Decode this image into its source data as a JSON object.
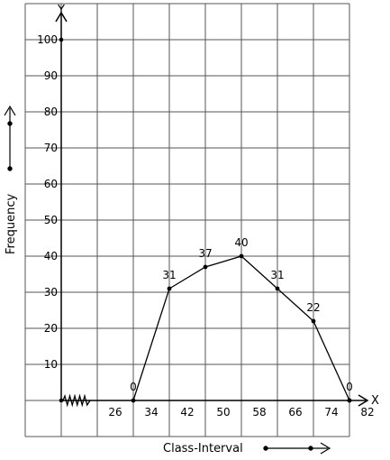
{
  "chart_data": {
    "type": "line",
    "title": "",
    "xlabel": "Class-Interval",
    "ylabel": "Frequency",
    "x_axis_letter": "X",
    "y_axis_letter": "Y",
    "x_tick_labels": [
      "26",
      "34",
      "42",
      "50",
      "58",
      "66",
      "74",
      "82"
    ],
    "y_tick_labels": [
      "10",
      "20",
      "30",
      "40",
      "50",
      "60",
      "70",
      "80",
      "90",
      "100"
    ],
    "x_ticks": [
      26,
      34,
      42,
      50,
      58,
      66,
      74,
      82
    ],
    "y_ticks": [
      10,
      20,
      30,
      40,
      50,
      60,
      70,
      80,
      90,
      100
    ],
    "xlim": [
      14,
      86
    ],
    "ylim": [
      0,
      100
    ],
    "grid": true,
    "series": [
      {
        "x": [
          30,
          38,
          46,
          54,
          62,
          70,
          78
        ],
        "y": [
          0,
          31,
          37,
          40,
          31,
          22,
          0
        ],
        "labels": [
          "0",
          "31",
          "37",
          "40",
          "31",
          "22",
          "0"
        ]
      }
    ]
  }
}
